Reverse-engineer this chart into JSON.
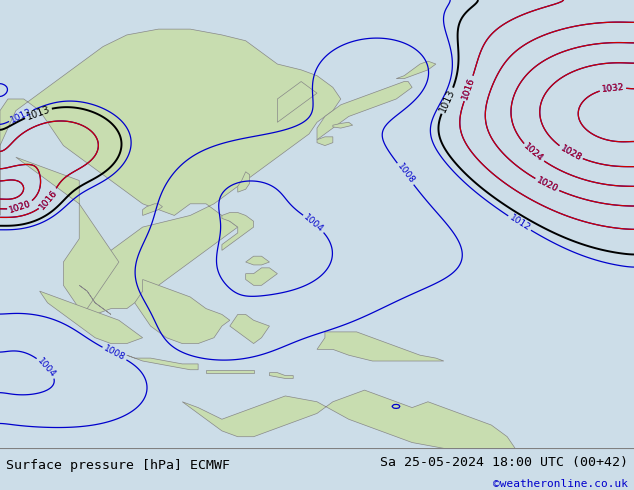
{
  "title_left": "Surface pressure [hPa] ECMWF",
  "title_right": "Sa 25-05-2024 18:00 UTC (00+42)",
  "copyright": "©weatheronline.co.uk",
  "bg_color": "#ccdde8",
  "land_color": "#c8ddb0",
  "land_edge": "#888888",
  "ocean_color": "#ccdde8",
  "footer_bg": "#e0e0e0",
  "col_blue": "#0000cc",
  "col_black": "#000000",
  "col_red": "#cc0000",
  "col_gray": "#888888",
  "figsize": [
    6.34,
    4.9
  ],
  "dpi": 100,
  "map_xlim": [
    90,
    170
  ],
  "map_ylim": [
    -22,
    55
  ]
}
